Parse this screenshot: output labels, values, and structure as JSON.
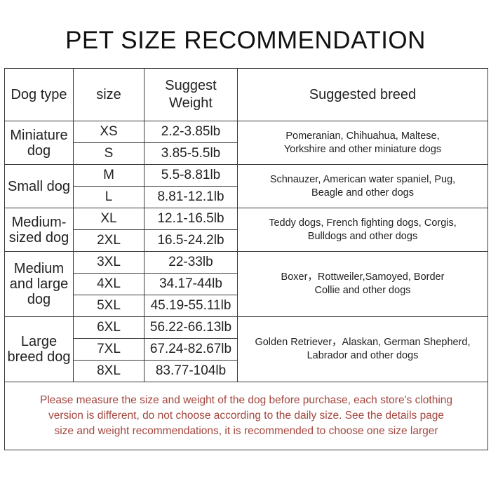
{
  "title": "PET SIZE RECOMMENDATION",
  "headers": {
    "dog_type": "Dog type",
    "size": "size",
    "weight_line1": "Suggest",
    "weight_line2": "Weight",
    "breed": "Suggested breed"
  },
  "groups": [
    {
      "type_lines": [
        "Miniature",
        "dog"
      ],
      "rows": [
        {
          "size": "XS",
          "weight": "2.2-3.85lb"
        },
        {
          "size": "S",
          "weight": "3.85-5.5lb"
        }
      ],
      "breed_lines": [
        "Pomeranian, Chihuahua, Maltese,",
        "Yorkshire and other miniature dogs"
      ]
    },
    {
      "type_lines": [
        "Small dog"
      ],
      "rows": [
        {
          "size": "M",
          "weight": "5.5-8.81lb"
        },
        {
          "size": "L",
          "weight": "8.81-12.1lb"
        }
      ],
      "breed_lines": [
        "Schnauzer, American water spaniel, Pug,",
        "Beagle and other dogs"
      ]
    },
    {
      "type_lines": [
        "Medium-",
        "sized dog"
      ],
      "rows": [
        {
          "size": "XL",
          "weight": "12.1-16.5lb"
        },
        {
          "size": "2XL",
          "weight": "16.5-24.2lb"
        }
      ],
      "breed_lines": [
        "Teddy dogs, French fighting dogs, Corgis,",
        "Bulldogs and other dogs"
      ]
    },
    {
      "type_lines": [
        "Medium",
        "and large",
        "dog"
      ],
      "rows": [
        {
          "size": "3XL",
          "weight": "22-33lb"
        },
        {
          "size": "4XL",
          "weight": "34.17-44lb"
        },
        {
          "size": "5XL",
          "weight": "45.19-55.11lb"
        }
      ],
      "breed_lines": [
        "Boxer，Rottweiler,Samoyed,  Border",
        "Collie and other dogs"
      ]
    },
    {
      "type_lines": [
        "Large",
        "breed dog"
      ],
      "rows": [
        {
          "size": "6XL",
          "weight": "56.22-66.13lb"
        },
        {
          "size": "7XL",
          "weight": "67.24-82.67lb"
        },
        {
          "size": "8XL",
          "weight": "83.77-104lb"
        }
      ],
      "breed_lines": [
        "Golden Retriever，Alaskan, German Shepherd,",
        "Labrador and other dogs"
      ]
    }
  ],
  "note_lines": [
    "Please measure the size and weight of the dog before purchase, each store's clothing",
    "version is different, do not choose according to the daily size. See the details page",
    "size and weight recommendations, it is recommended to choose one size larger"
  ]
}
